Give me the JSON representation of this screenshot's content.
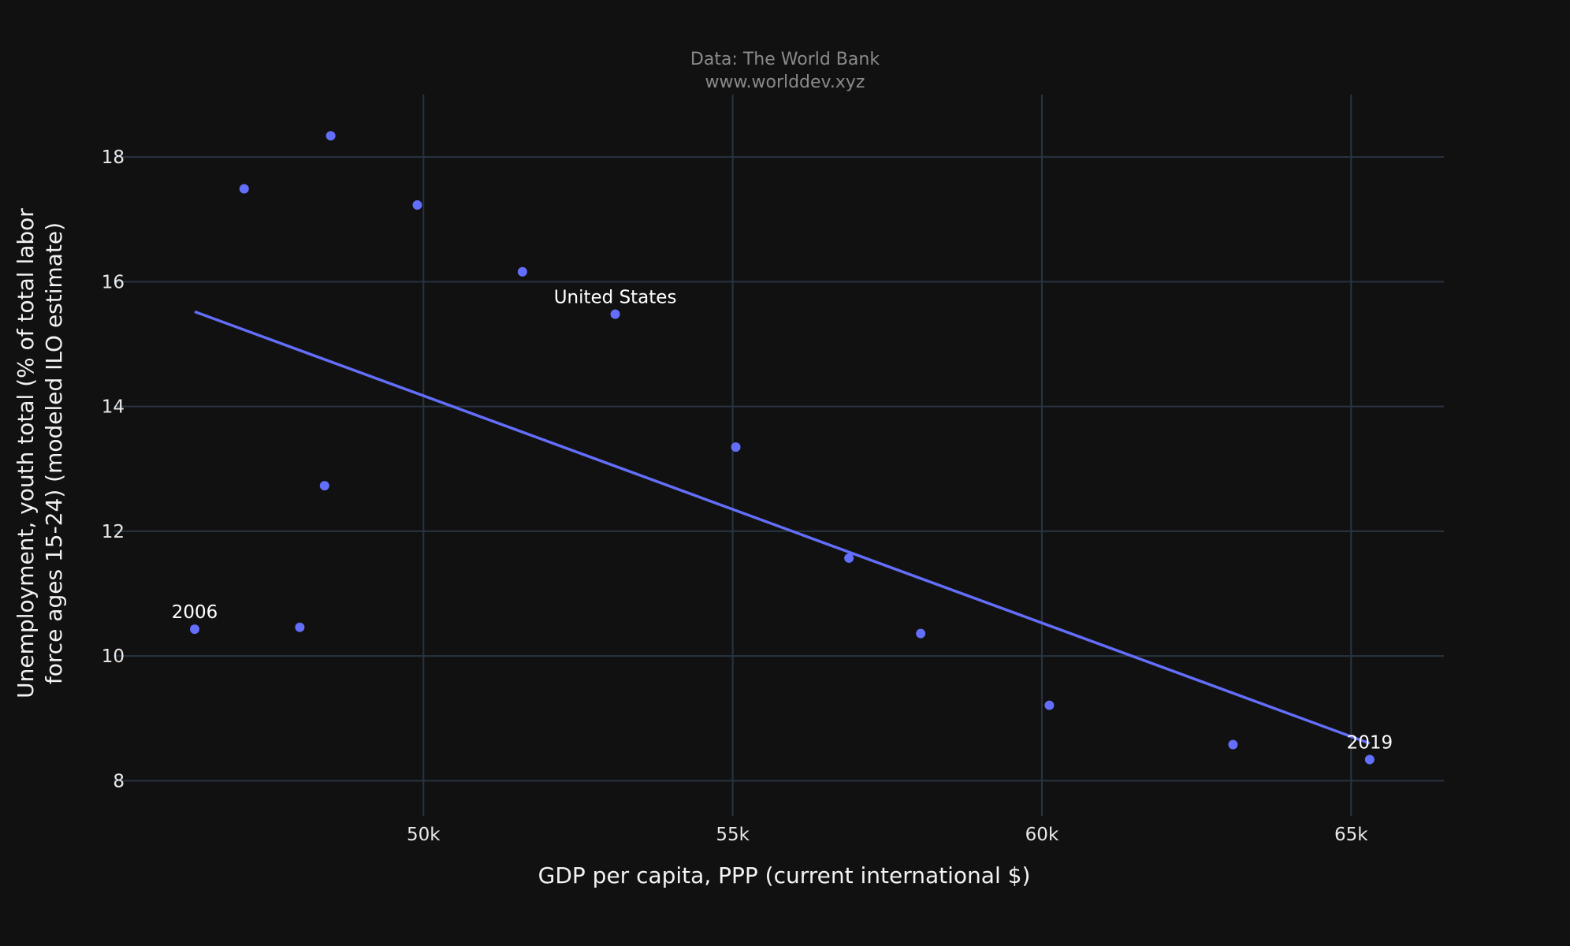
{
  "chart_data": {
    "type": "scatter",
    "title_lines": [
      "Data: The World Bank",
      "www.worlddev.xyz"
    ],
    "xlabel": "GDP per capita, PPP (current international $)",
    "ylabel_lines": [
      "Unemployment, youth total (% of total labor",
      "force ages 15-24) (modeled ILO estimate)"
    ],
    "xlim": [
      45000,
      66500
    ],
    "ylim": [
      7.5,
      19
    ],
    "x_ticks": [
      {
        "value": 50000,
        "label": "50k"
      },
      {
        "value": 55000,
        "label": "55k"
      },
      {
        "value": 60000,
        "label": "60k"
      },
      {
        "value": 65000,
        "label": "65k"
      }
    ],
    "y_ticks": [
      {
        "value": 8,
        "label": "8"
      },
      {
        "value": 10,
        "label": "10"
      },
      {
        "value": 12,
        "label": "12"
      },
      {
        "value": 14,
        "label": "14"
      },
      {
        "value": 16,
        "label": "16"
      },
      {
        "value": 18,
        "label": "18"
      }
    ],
    "grid": true,
    "series": [
      {
        "color": "#636efa",
        "points": [
          {
            "x": 46300,
            "y": 10.43
          },
          {
            "x": 47100,
            "y": 17.49
          },
          {
            "x": 48000,
            "y": 10.46
          },
          {
            "x": 48400,
            "y": 12.73
          },
          {
            "x": 48500,
            "y": 18.34
          },
          {
            "x": 49900,
            "y": 17.23
          },
          {
            "x": 51600,
            "y": 16.16
          },
          {
            "x": 53100,
            "y": 15.48
          },
          {
            "x": 55050,
            "y": 13.35
          },
          {
            "x": 56880,
            "y": 11.57
          },
          {
            "x": 58040,
            "y": 10.36
          },
          {
            "x": 60120,
            "y": 9.21
          },
          {
            "x": 63090,
            "y": 8.58
          },
          {
            "x": 65300,
            "y": 8.34
          }
        ]
      }
    ],
    "trendline": {
      "color": "#636efa",
      "points": [
        {
          "x": 46300,
          "y": 15.52
        },
        {
          "x": 65300,
          "y": 8.6
        }
      ]
    },
    "annotations": [
      {
        "text": "2006",
        "x": 46300,
        "y": 10.43
      },
      {
        "text": "United States",
        "x": 53100,
        "y": 15.48
      },
      {
        "text": "2019",
        "x": 65300,
        "y": 8.34
      }
    ]
  }
}
